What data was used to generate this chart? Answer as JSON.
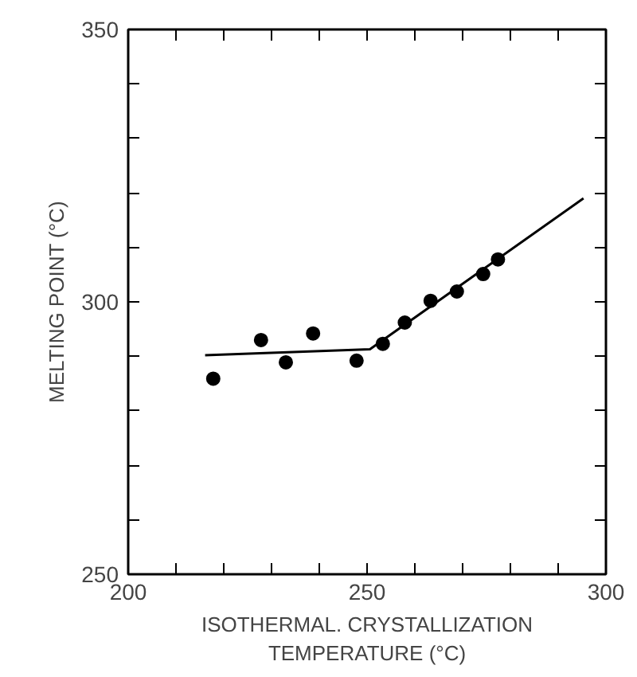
{
  "chart_data": {
    "type": "scatter",
    "xlabel": "ISOTHERMAL. CRYSTALLIZATION\nTEMPERATURE (°C)",
    "ylabel": "MELTING POINT (°C)",
    "xlim": [
      200,
      300
    ],
    "ylim": [
      250,
      350
    ],
    "xticks": [
      200,
      {
        "value": 210,
        "label": null
      },
      {
        "value": 220,
        "label": null
      },
      {
        "value": 230,
        "label": null
      },
      {
        "value": 240,
        "label": null
      },
      250,
      {
        "value": 260,
        "label": null
      },
      {
        "value": 270,
        "label": null
      },
      {
        "value": 280,
        "label": null
      },
      {
        "value": 290,
        "label": null
      },
      300
    ],
    "yticks": [
      250,
      {
        "value": 260,
        "label": null
      },
      {
        "value": 270,
        "label": null
      },
      {
        "value": 280,
        "label": null
      },
      {
        "value": 290,
        "label": null
      },
      300,
      {
        "value": 310,
        "label": null
      },
      {
        "value": 320,
        "label": null
      },
      {
        "value": 330,
        "label": null
      },
      {
        "value": 340,
        "label": null
      },
      350
    ],
    "grid": false,
    "marker": "circle",
    "series": [
      {
        "color": "#000000",
        "x": [
          217.8,
          227.8,
          233,
          238.7,
          247.8,
          253.3,
          257.9,
          263.3,
          268.8,
          274.3,
          277.4
        ],
        "values": [
          285.9,
          293.0,
          288.9,
          294.2,
          289.2,
          292.3,
          296.2,
          300.2,
          301.9,
          305.1,
          307.8
        ]
      },
      {
        "type": "line",
        "color": "#000000",
        "line_style": "solid",
        "marker": "none",
        "x": [
          216.1,
          250.6,
          295.3
        ],
        "values": [
          290.2,
          291.3,
          319.0
        ]
      }
    ]
  }
}
